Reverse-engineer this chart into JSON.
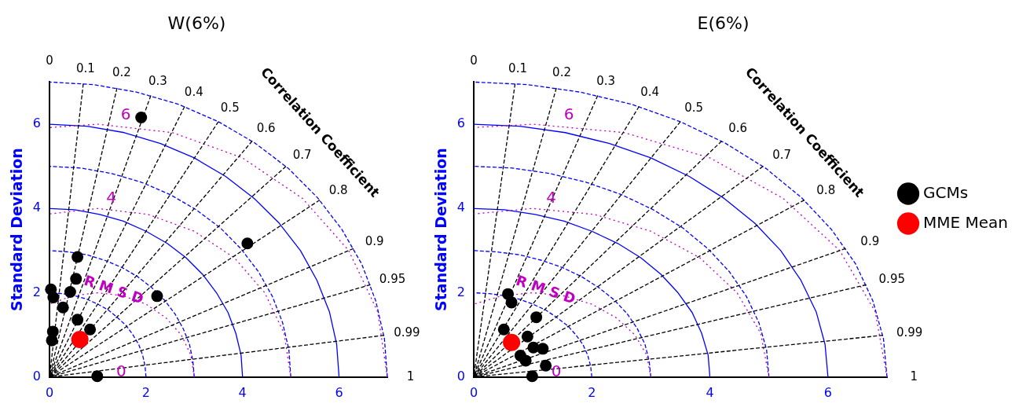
{
  "chart_data": [
    {
      "type": "scatter",
      "title": "W(6%)",
      "ylabel": "Standard Deviation",
      "xlim": [
        0,
        7
      ],
      "ylim": [
        0,
        7
      ],
      "xticks": [
        0,
        2,
        4,
        6
      ],
      "yticks": [
        0,
        2,
        4,
        6
      ],
      "grid": false,
      "marker": "circle",
      "series": [
        {
          "type": "line",
          "color": "#0000ff",
          "line_style": "dashed",
          "marker": "none",
          "x": [
            2,
            1.98,
            1.93,
            1.85,
            1.73,
            1.59,
            1.41,
            1.22,
            1,
            0.77,
            0.52,
            0.26,
            0
          ],
          "values": [
            0,
            0.26,
            0.52,
            0.77,
            1,
            1.22,
            1.41,
            1.59,
            1.73,
            1.85,
            1.93,
            1.98,
            2
          ]
        },
        {
          "type": "line",
          "color": "#0000ff",
          "line_style": "dashed",
          "marker": "none",
          "x": [
            3,
            2.97,
            2.9,
            2.77,
            2.6,
            2.38,
            2.12,
            1.83,
            1.5,
            1.15,
            0.78,
            0.39,
            0
          ],
          "values": [
            0,
            0.39,
            0.78,
            1.15,
            1.5,
            1.83,
            2.12,
            2.38,
            2.6,
            2.77,
            2.9,
            2.97,
            3
          ]
        },
        {
          "type": "line",
          "color": "#0000ff",
          "line_style": "solid",
          "marker": "none",
          "x": [
            4,
            3.97,
            3.86,
            3.7,
            3.46,
            3.17,
            2.83,
            2.44,
            2,
            1.53,
            1.04,
            0.52,
            0
          ],
          "values": [
            0,
            0.52,
            1.04,
            1.53,
            2,
            2.44,
            2.83,
            3.17,
            3.46,
            3.7,
            3.86,
            3.97,
            4
          ]
        },
        {
          "type": "line",
          "color": "#0000ff",
          "line_style": "dashed",
          "marker": "none",
          "x": [
            5,
            4.96,
            4.83,
            4.62,
            4.33,
            3.97,
            3.54,
            3.04,
            2.5,
            1.91,
            1.29,
            0.65,
            0
          ],
          "values": [
            0,
            0.65,
            1.29,
            1.91,
            2.5,
            3.04,
            3.54,
            3.97,
            4.33,
            4.62,
            4.83,
            4.96,
            5
          ]
        },
        {
          "type": "line",
          "color": "#0000ff",
          "line_style": "solid",
          "marker": "none",
          "x": [
            6,
            5.95,
            5.8,
            5.54,
            5.2,
            4.76,
            4.24,
            3.65,
            3,
            2.3,
            1.55,
            0.78,
            0
          ],
          "values": [
            0,
            0.78,
            1.55,
            2.3,
            3,
            3.65,
            4.24,
            4.76,
            5.2,
            5.54,
            5.8,
            5.95,
            6
          ]
        },
        {
          "type": "line",
          "color": "#0000ff",
          "line_style": "dashed",
          "marker": "none",
          "x": [
            7,
            6.94,
            6.76,
            6.47,
            6.06,
            5.55,
            4.95,
            4.26,
            3.5,
            2.68,
            1.81,
            0.91,
            0
          ],
          "values": [
            0,
            0.91,
            1.81,
            2.68,
            3.5,
            4.26,
            4.95,
            5.55,
            6.06,
            6.47,
            6.76,
            6.94,
            7
          ]
        },
        {
          "type": "line",
          "color": "#c000c0",
          "line_style": "dotted",
          "marker": "none",
          "x": [
            3,
            2.93,
            2.73,
            2.41,
            2,
            1.52,
            1,
            0.48,
            0
          ],
          "values": [
            0,
            0.52,
            1,
            1.41,
            1.73,
            1.93,
            2,
            1.93,
            1.73
          ]
        },
        {
          "type": "line",
          "color": "#c000c0",
          "line_style": "dotted",
          "marker": "none",
          "x": [
            5,
            4.86,
            4.46,
            3.83,
            3,
            2.04,
            1,
            0
          ],
          "values": [
            0,
            1.04,
            2,
            2.83,
            3.46,
            3.86,
            4,
            3.87
          ]
        },
        {
          "type": "line",
          "color": "#c000c0",
          "line_style": "dotted",
          "marker": "none",
          "x": [
            7,
            6.8,
            6.2,
            5.24,
            4,
            2.55,
            1,
            0
          ],
          "values": [
            0,
            1.55,
            3,
            4.24,
            5.2,
            5.8,
            6,
            5.92
          ]
        },
        {
          "type": "line",
          "color": "#000000",
          "line_style": "dashed",
          "marker": "none",
          "x": [
            0.7,
            0
          ],
          "values": [
            6.96,
            0
          ]
        },
        {
          "type": "line",
          "color": "#000000",
          "line_style": "dashed",
          "marker": "none",
          "x": [
            1.4,
            0
          ],
          "values": [
            6.86,
            0
          ]
        },
        {
          "type": "line",
          "color": "#000000",
          "line_style": "dashed",
          "marker": "none",
          "x": [
            2.1,
            0
          ],
          "values": [
            6.68,
            0
          ]
        },
        {
          "type": "line",
          "color": "#000000",
          "line_style": "dashed",
          "marker": "none",
          "x": [
            2.8,
            0
          ],
          "values": [
            6.42,
            0
          ]
        },
        {
          "type": "line",
          "color": "#000000",
          "line_style": "dashed",
          "marker": "none",
          "x": [
            3.5,
            0
          ],
          "values": [
            6.06,
            0
          ]
        },
        {
          "type": "line",
          "color": "#000000",
          "line_style": "dashed",
          "marker": "none",
          "x": [
            4.2,
            0
          ],
          "values": [
            5.6,
            0
          ]
        },
        {
          "type": "line",
          "color": "#000000",
          "line_style": "dashed",
          "marker": "none",
          "x": [
            4.9,
            0
          ],
          "values": [
            5,
            0
          ]
        },
        {
          "type": "line",
          "color": "#000000",
          "line_style": "dashed",
          "marker": "none",
          "x": [
            5.6,
            0
          ],
          "values": [
            4.2,
            0
          ]
        },
        {
          "type": "line",
          "color": "#000000",
          "line_style": "dashed",
          "marker": "none",
          "x": [
            6.3,
            0
          ],
          "values": [
            3.05,
            0
          ]
        },
        {
          "type": "line",
          "color": "#000000",
          "line_style": "dashed",
          "marker": "none",
          "x": [
            6.65,
            0
          ],
          "values": [
            2.19,
            0
          ]
        },
        {
          "type": "line",
          "color": "#000000",
          "line_style": "dashed",
          "marker": "none",
          "x": [
            6.93,
            0
          ],
          "values": [
            0.99,
            0
          ]
        },
        {
          "color": "#000000",
          "x": [
            1.9,
            4.1,
            0.58,
            0.55,
            0.43,
            0.08,
            0.03,
            0.28,
            0.58,
            0.84,
            2.23,
            0.07,
            0.05,
            0.99
          ],
          "values": [
            6.16,
            3.17,
            2.85,
            2.33,
            2.02,
            1.89,
            2.08,
            1.65,
            1.36,
            1.13,
            1.92,
            1.08,
            0.87,
            0.02
          ]
        },
        {
          "color": "#ff0000",
          "x": [
            0.63
          ],
          "values": [
            0.89
          ]
        }
      ],
      "annotations": [
        "Correlation Coefficient",
        "R M S D",
        "0",
        "0.1",
        "0.2",
        "0.3",
        "0.4",
        "0.5",
        "0.6",
        "0.7",
        "0.8",
        "0.9",
        "0.95",
        "0.99",
        "1",
        {
          "text": "0",
          "x": 1,
          "y": 0
        },
        {
          "text": "4",
          "x": 1.45,
          "y": 3.97
        },
        {
          "text": "6",
          "x": 1.75,
          "y": 5.95
        }
      ]
    },
    {
      "type": "scatter",
      "title": "E(6%)",
      "ylabel": "Standard Deviation",
      "xlim": [
        0,
        7
      ],
      "ylim": [
        0,
        7
      ],
      "xticks": [
        0,
        2,
        4,
        6
      ],
      "yticks": [
        0,
        2,
        4,
        6
      ],
      "grid": false,
      "marker": "circle",
      "legend": "right",
      "series": [
        {
          "type": "line",
          "color": "#0000ff",
          "line_style": "dashed",
          "marker": "none",
          "x": [
            2,
            1.98,
            1.93,
            1.85,
            1.73,
            1.59,
            1.41,
            1.22,
            1,
            0.77,
            0.52,
            0.26,
            0
          ],
          "values": [
            0,
            0.26,
            0.52,
            0.77,
            1,
            1.22,
            1.41,
            1.59,
            1.73,
            1.85,
            1.93,
            1.98,
            2
          ]
        },
        {
          "type": "line",
          "color": "#0000ff",
          "line_style": "dashed",
          "marker": "none",
          "x": [
            3,
            2.97,
            2.9,
            2.77,
            2.6,
            2.38,
            2.12,
            1.83,
            1.5,
            1.15,
            0.78,
            0.39,
            0
          ],
          "values": [
            0,
            0.39,
            0.78,
            1.15,
            1.5,
            1.83,
            2.12,
            2.38,
            2.6,
            2.77,
            2.9,
            2.97,
            3
          ]
        },
        {
          "type": "line",
          "color": "#0000ff",
          "line_style": "solid",
          "marker": "none",
          "x": [
            4,
            3.97,
            3.86,
            3.7,
            3.46,
            3.17,
            2.83,
            2.44,
            2,
            1.53,
            1.04,
            0.52,
            0
          ],
          "values": [
            0,
            0.52,
            1.04,
            1.53,
            2,
            2.44,
            2.83,
            3.17,
            3.46,
            3.7,
            3.86,
            3.97,
            4
          ]
        },
        {
          "type": "line",
          "color": "#0000ff",
          "line_style": "dashed",
          "marker": "none",
          "x": [
            5,
            4.96,
            4.83,
            4.62,
            4.33,
            3.97,
            3.54,
            3.04,
            2.5,
            1.91,
            1.29,
            0.65,
            0
          ],
          "values": [
            0,
            0.65,
            1.29,
            1.91,
            2.5,
            3.04,
            3.54,
            3.97,
            4.33,
            4.62,
            4.83,
            4.96,
            5
          ]
        },
        {
          "type": "line",
          "color": "#0000ff",
          "line_style": "solid",
          "marker": "none",
          "x": [
            6,
            5.95,
            5.8,
            5.54,
            5.2,
            4.76,
            4.24,
            3.65,
            3,
            2.3,
            1.55,
            0.78,
            0
          ],
          "values": [
            0,
            0.78,
            1.55,
            2.3,
            3,
            3.65,
            4.24,
            4.76,
            5.2,
            5.54,
            5.8,
            5.95,
            6
          ]
        },
        {
          "type": "line",
          "color": "#0000ff",
          "line_style": "dashed",
          "marker": "none",
          "x": [
            7,
            6.94,
            6.76,
            6.47,
            6.06,
            5.55,
            4.95,
            4.26,
            3.5,
            2.68,
            1.81,
            0.91,
            0
          ],
          "values": [
            0,
            0.91,
            1.81,
            2.68,
            3.5,
            4.26,
            4.95,
            5.55,
            6.06,
            6.47,
            6.76,
            6.94,
            7
          ]
        },
        {
          "type": "line",
          "color": "#c000c0",
          "line_style": "dotted",
          "marker": "none",
          "x": [
            3,
            2.93,
            2.73,
            2.41,
            2,
            1.52,
            1,
            0.48,
            0
          ],
          "values": [
            0,
            0.52,
            1,
            1.41,
            1.73,
            1.93,
            2,
            1.93,
            1.73
          ]
        },
        {
          "type": "line",
          "color": "#c000c0",
          "line_style": "dotted",
          "marker": "none",
          "x": [
            5,
            4.86,
            4.46,
            3.83,
            3,
            2.04,
            1,
            0
          ],
          "values": [
            0,
            1.04,
            2,
            2.83,
            3.46,
            3.86,
            4,
            3.87
          ]
        },
        {
          "type": "line",
          "color": "#c000c0",
          "line_style": "dotted",
          "marker": "none",
          "x": [
            7,
            6.8,
            6.2,
            5.24,
            4,
            2.55,
            1,
            0
          ],
          "values": [
            0,
            1.55,
            3,
            4.24,
            5.2,
            5.8,
            6,
            5.92
          ]
        },
        {
          "type": "line",
          "color": "#000000",
          "line_style": "dashed",
          "marker": "none",
          "x": [
            0.7,
            0
          ],
          "values": [
            6.96,
            0
          ]
        },
        {
          "type": "line",
          "color": "#000000",
          "line_style": "dashed",
          "marker": "none",
          "x": [
            1.4,
            0
          ],
          "values": [
            6.86,
            0
          ]
        },
        {
          "type": "line",
          "color": "#000000",
          "line_style": "dashed",
          "marker": "none",
          "x": [
            2.1,
            0
          ],
          "values": [
            6.68,
            0
          ]
        },
        {
          "type": "line",
          "color": "#000000",
          "line_style": "dashed",
          "marker": "none",
          "x": [
            2.8,
            0
          ],
          "values": [
            6.42,
            0
          ]
        },
        {
          "type": "line",
          "color": "#000000",
          "line_style": "dashed",
          "marker": "none",
          "x": [
            3.5,
            0
          ],
          "values": [
            6.06,
            0
          ]
        },
        {
          "type": "line",
          "color": "#000000",
          "line_style": "dashed",
          "marker": "none",
          "x": [
            4.2,
            0
          ],
          "values": [
            5.6,
            0
          ]
        },
        {
          "type": "line",
          "color": "#000000",
          "line_style": "dashed",
          "marker": "none",
          "x": [
            4.9,
            0
          ],
          "values": [
            5,
            0
          ]
        },
        {
          "type": "line",
          "color": "#000000",
          "line_style": "dashed",
          "marker": "none",
          "x": [
            5.6,
            0
          ],
          "values": [
            4.2,
            0
          ]
        },
        {
          "type": "line",
          "color": "#000000",
          "line_style": "dashed",
          "marker": "none",
          "x": [
            6.3,
            0
          ],
          "values": [
            3.05,
            0
          ]
        },
        {
          "type": "line",
          "color": "#000000",
          "line_style": "dashed",
          "marker": "none",
          "x": [
            6.65,
            0
          ],
          "values": [
            2.19,
            0
          ]
        },
        {
          "type": "line",
          "color": "#000000",
          "line_style": "dashed",
          "marker": "none",
          "x": [
            6.93,
            0
          ],
          "values": [
            0.99,
            0
          ]
        },
        {
          "name": "GCMs",
          "color": "#000000",
          "x": [
            0.58,
            0.64,
            1.06,
            0.51,
            0.91,
            1.01,
            1.17,
            0.79,
            0.88,
            1.22,
            0.99
          ],
          "values": [
            1.97,
            1.77,
            1.42,
            1.13,
            0.96,
            0.7,
            0.67,
            0.51,
            0.39,
            0.27,
            0.02
          ]
        },
        {
          "name": "MME Mean",
          "color": "#ff0000",
          "x": [
            0.64
          ],
          "values": [
            0.82
          ]
        }
      ],
      "annotations": [
        "Correlation Coefficient",
        "R M S D",
        "0",
        "0.1",
        "0.2",
        "0.3",
        "0.4",
        "0.5",
        "0.6",
        "0.7",
        "0.8",
        "0.9",
        "0.95",
        "0.99",
        "1",
        {
          "text": "0",
          "x": 1,
          "y": 0
        },
        {
          "text": "4",
          "x": 1.45,
          "y": 3.97
        },
        {
          "text": "6",
          "x": 1.75,
          "y": 5.95
        }
      ]
    }
  ]
}
